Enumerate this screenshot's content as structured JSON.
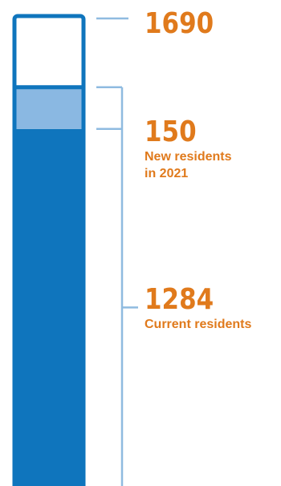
{
  "chart_data": {
    "type": "bar",
    "subtype": "stacked-thermometer",
    "total": 1690,
    "segments": [
      {
        "name": "Current residents",
        "value": 1284
      },
      {
        "name": "New residents in 2021",
        "value": 150
      }
    ],
    "labels": {
      "total": "1690",
      "new_value": "150",
      "new_caption_line1": "New residents",
      "new_caption_line2": "in 2021",
      "current_value": "1284",
      "current_caption": "Current residents"
    },
    "colors": {
      "current": "#0f75bd",
      "new": "#8ab8e2",
      "outline": "#0f75bd",
      "empty": "#ffffff",
      "leader": "#8fbbe0",
      "label": "#e07a1c"
    }
  }
}
